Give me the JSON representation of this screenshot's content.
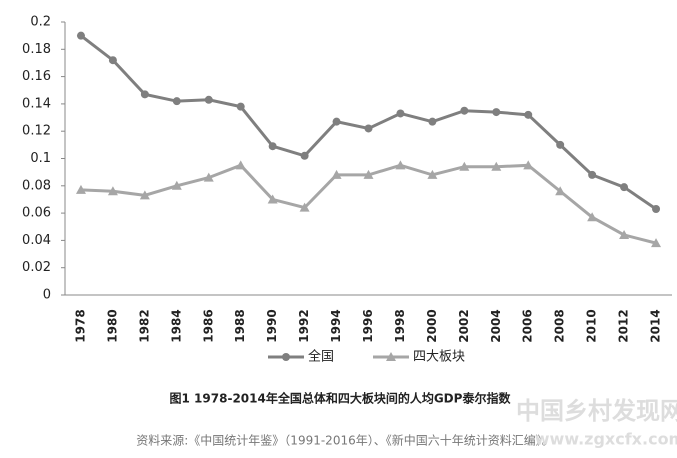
{
  "chart_data": {
    "type": "line",
    "categories": [
      "1978",
      "1980",
      "1982",
      "1984",
      "1986",
      "1988",
      "1990",
      "1992",
      "1994",
      "1996",
      "1998",
      "2000",
      "2002",
      "2004",
      "2006",
      "2008",
      "2010",
      "2012",
      "2014"
    ],
    "series": [
      {
        "name": "全国",
        "color": "#7f7f7f",
        "marker": "circle",
        "values": [
          0.19,
          0.172,
          0.147,
          0.142,
          0.143,
          0.138,
          0.109,
          0.102,
          0.127,
          0.122,
          0.133,
          0.127,
          0.135,
          0.134,
          0.132,
          0.11,
          0.088,
          0.079,
          0.063
        ]
      },
      {
        "name": "四大板块",
        "color": "#a6a6a6",
        "marker": "triangle",
        "values": [
          0.077,
          0.076,
          0.073,
          0.08,
          0.086,
          0.095,
          0.07,
          0.064,
          0.088,
          0.088,
          0.095,
          0.088,
          0.094,
          0.094,
          0.095,
          0.076,
          0.057,
          0.044,
          0.038
        ]
      }
    ],
    "ylim": [
      0,
      0.2
    ],
    "yticks": [
      0,
      0.02,
      0.04,
      0.06,
      0.08,
      0.1,
      0.12,
      0.14,
      0.16,
      0.18,
      0.2
    ],
    "grid": false,
    "legend": "bottom",
    "caption": "图1 1978-2014年全国总体和四大板块间的人均GDP泰尔指数",
    "source": "资料来源:《中国统计年鉴》（1991-2016年）、《新中国六十年统计资料汇编》。",
    "watermark": [
      "中国乡村发现网",
      "www.zgxcfx.com"
    ]
  }
}
